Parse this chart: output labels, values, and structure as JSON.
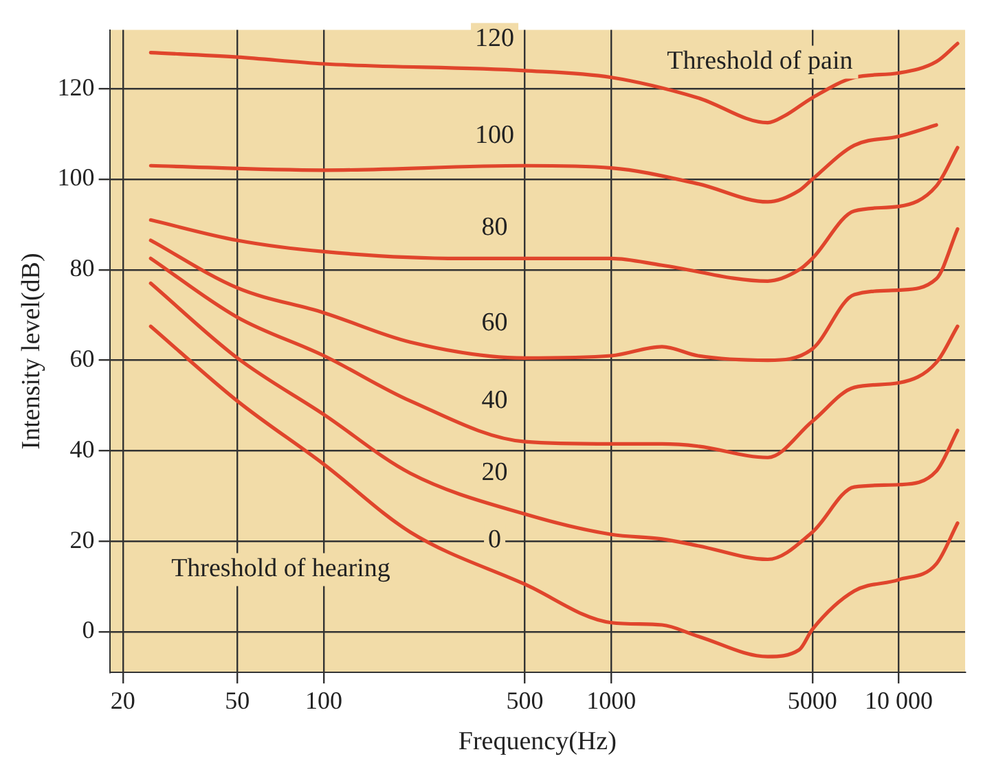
{
  "chart_data": {
    "type": "line",
    "xlabel": "Frequency(Hz)",
    "ylabel": "Intensity level(dB)",
    "log": "x",
    "grid": true,
    "marker": "none",
    "line_style": "solid",
    "xlim": [
      18,
      17000
    ],
    "xticks": [
      20,
      50,
      100,
      500,
      1000,
      5000,
      {
        "value": 10000,
        "label": "10 000"
      }
    ],
    "ylim": [
      -9,
      133
    ],
    "yticks": [
      0,
      20,
      40,
      60,
      80,
      100,
      120
    ],
    "series": [
      {
        "name": "0",
        "color": "#e0452c",
        "x": [
          25,
          50,
          100,
          200,
          500,
          1000,
          1500,
          2000,
          3500,
          4500,
          5000,
          7000,
          10000,
          13500,
          16000
        ],
        "values": [
          67.5,
          51,
          37,
          22,
          10.5,
          2,
          1.5,
          -1,
          -5.5,
          -4,
          0.5,
          9,
          11.5,
          15,
          24
        ]
      },
      {
        "color": "#e0452c",
        "x": [
          25,
          50,
          100,
          200,
          500,
          1000,
          1500,
          2000,
          3500,
          5000,
          7000,
          10000,
          13500,
          16000
        ],
        "name": "20",
        "values": [
          77,
          60.5,
          48,
          35,
          26,
          21.5,
          20.5,
          19,
          16,
          22,
          32,
          32.5,
          35.5,
          44.5
        ]
      },
      {
        "color": "#e0452c",
        "x": [
          25,
          50,
          100,
          200,
          500,
          1000,
          1500,
          2000,
          3500,
          5000,
          7000,
          10000,
          13500,
          16000
        ],
        "name": "40",
        "values": [
          82.5,
          69.5,
          61,
          51,
          42,
          41.5,
          41.5,
          41,
          38.5,
          46.5,
          54,
          55,
          59.5,
          67.5
        ]
      },
      {
        "color": "#e0452c",
        "x": [
          25,
          50,
          100,
          200,
          500,
          1000,
          1500,
          2000,
          3500,
          5000,
          7000,
          10000,
          13500,
          16000
        ],
        "name": "60",
        "values": [
          86.5,
          76,
          70.5,
          64,
          60.5,
          61,
          63,
          61,
          60,
          62.5,
          74.5,
          75.5,
          78,
          89
        ]
      },
      {
        "color": "#e0452c",
        "x": [
          25,
          50,
          100,
          300,
          1000,
          1500,
          3500,
          4500,
          5000,
          7000,
          10000,
          13500,
          16000
        ],
        "name": "80",
        "values": [
          91,
          86.5,
          84,
          82.5,
          82.5,
          81,
          77.5,
          80,
          82.5,
          93,
          94,
          98.5,
          107
        ]
      },
      {
        "color": "#e0452c",
        "x": [
          25,
          100,
          500,
          1000,
          2000,
          3500,
          4500,
          5000,
          7000,
          10000,
          13500
        ],
        "name": "100",
        "values": [
          103,
          102,
          103,
          102.5,
          99,
          95,
          97.5,
          100,
          107.5,
          109.5,
          112
        ]
      },
      {
        "color": "#e0452c",
        "x": [
          25,
          50,
          100,
          500,
          1000,
          2000,
          3500,
          4000,
          5000,
          7000,
          10000,
          13500,
          16000
        ],
        "name": "120",
        "values": [
          128,
          127,
          125.5,
          124,
          122.5,
          118,
          112.5,
          114,
          118,
          122.5,
          123.5,
          126,
          130
        ]
      }
    ],
    "annotations": [
      "Threshold of pain",
      "Threshold of hearing"
    ]
  }
}
